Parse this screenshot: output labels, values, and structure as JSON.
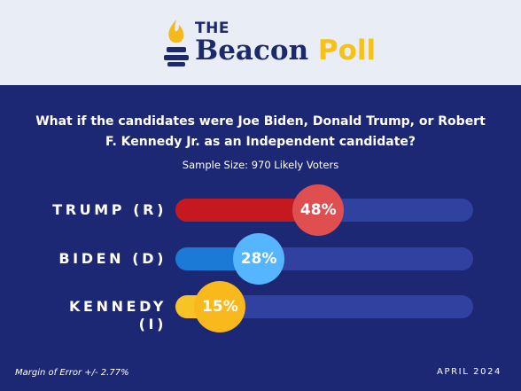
{
  "logo": {
    "the": "THE",
    "name": "Beacon",
    "poll": "Poll"
  },
  "chart_data": {
    "type": "bar",
    "title": "What if the candidates were Joe Biden, Donald Trump, or Robert F. Kennedy Jr. as an Independent candidate?",
    "subtitle": "Sample Size: 970 Likely Voters",
    "categories": [
      "TRUMP (R)",
      "BIDEN (D)",
      "KENNEDY (I)"
    ],
    "values": [
      48,
      28,
      15
    ],
    "value_labels": [
      "48%",
      "28%",
      "15%"
    ],
    "unit": "%",
    "xlim": [
      0,
      100
    ],
    "orientation": "horizontal",
    "grid": false,
    "colors": {
      "TRUMP (R)": {
        "fill": "#c41a1f",
        "bubble": "#df4f50"
      },
      "BIDEN (D)": {
        "fill": "#1a7ad6",
        "bubble": "#55b6ff"
      },
      "KENNEDY (I)": {
        "fill": "#f7c325",
        "bubble": "#f9b81b"
      }
    }
  },
  "footer": {
    "margin_of_error": "Margin of Error +/- 2.77%",
    "date": "APRIL 2024"
  }
}
